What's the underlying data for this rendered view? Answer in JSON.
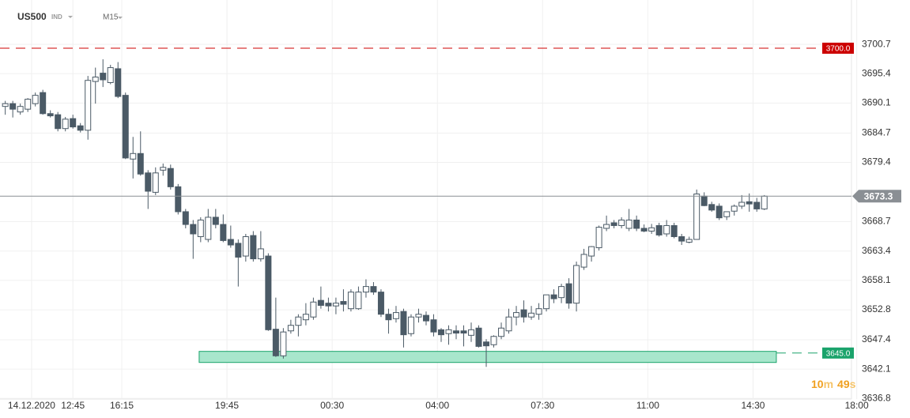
{
  "chart_data": {
    "type": "candlestick",
    "symbol": "US500",
    "instrument_type": "IND",
    "timeframe": "M15",
    "x": [
      0,
      1,
      2,
      3,
      4,
      5,
      6,
      7,
      8,
      9,
      10,
      11,
      12,
      13,
      14,
      15,
      16,
      17,
      18,
      19,
      20,
      21,
      22,
      23,
      24,
      25,
      26,
      27,
      28,
      29,
      30,
      31,
      32,
      33,
      34,
      35,
      36,
      37,
      38,
      39,
      40,
      41,
      42,
      43,
      44,
      45,
      46,
      47,
      48,
      49,
      50,
      51,
      52,
      53,
      54,
      55,
      56,
      57,
      58,
      59,
      60,
      61,
      62,
      63,
      64,
      65,
      66,
      67,
      68,
      69,
      70,
      71,
      72,
      73,
      74,
      75,
      76,
      77,
      78,
      79,
      80,
      81,
      82,
      83,
      84,
      85,
      86,
      87,
      88,
      89,
      90,
      91,
      92,
      93,
      94,
      95,
      96,
      97,
      98,
      99,
      100,
      101
    ],
    "open": [
      3689.5,
      3690,
      3688.5,
      3689,
      3690,
      3692,
      3688.2,
      3688,
      3685.5,
      3687.3,
      3686,
      3685.2,
      3694,
      3695.5,
      3693.8,
      3696.3,
      3691.5,
      3680,
      3681,
      3677.5,
      3674,
      3678,
      3678.3,
      3675,
      3670.5,
      3668.2,
      3666,
      3665.5,
      3669.5,
      3668.2,
      3665.5,
      3664.8,
      3662.5,
      3666.2,
      3662,
      3662.5,
      3649.3,
      3644.5,
      3649,
      3650,
      3651,
      3651.5,
      3654.5,
      3654,
      3653.5,
      3654.3,
      3653,
      3653,
      3656,
      3657,
      3656,
      3652,
      3651.2,
      3652.5,
      3648.5,
      3651.5,
      3651.8,
      3651,
      3649.2,
      3648.5,
      3649,
      3649,
      3648.2,
      3649.5,
      3647,
      3646.5,
      3648,
      3649,
      3651.5,
      3652.8,
      3651.5,
      3652,
      3653,
      3655.5,
      3655,
      3657.5,
      3654,
      3660.5,
      3662.5,
      3664,
      3667.5,
      3668.5,
      3668,
      3667.5,
      3669,
      3667.5,
      3667,
      3668,
      3666.5,
      3668,
      3666,
      3665,
      3665.5,
      3673.3,
      3671.8,
      3671.5,
      3669.6,
      3670.6,
      3671.5,
      3672.3,
      3672.2,
      3671
    ],
    "high": [
      3690.5,
      3690.5,
      3690,
      3691,
      3692,
      3692.5,
      3688.8,
      3688.5,
      3687.6,
      3688,
      3686.5,
      3695,
      3696.5,
      3698,
      3697,
      3697.5,
      3692,
      3684,
      3685,
      3678,
      3678.5,
      3679.2,
      3679,
      3675.5,
      3671,
      3669,
      3669.5,
      3671,
      3671,
      3670,
      3668,
      3665.5,
      3666.5,
      3667,
      3667,
      3663,
      3655,
      3649.5,
      3651,
      3652,
      3654,
      3655,
      3657,
      3655,
      3655,
      3656.5,
      3656.5,
      3657,
      3658.3,
      3657.8,
      3656.5,
      3653,
      3653.5,
      3653,
      3652,
      3653,
      3652.5,
      3652,
      3649.5,
      3650,
      3650,
      3650,
      3650.5,
      3650,
      3647.5,
      3648.2,
      3650.5,
      3653,
      3653.5,
      3654.5,
      3653.5,
      3654,
      3655.5,
      3656.5,
      3657.5,
      3658.5,
      3661.5,
      3663.8,
      3664.3,
      3668,
      3669.8,
      3669,
      3669.5,
      3671,
      3669.8,
      3668.2,
      3668.3,
      3668.5,
      3669,
      3668.5,
      3666.5,
      3666,
      3674.5,
      3674,
      3672.3,
      3672,
      3670.5,
      3671.8,
      3673.5,
      3673.8,
      3673,
      3673.5
    ],
    "low": [
      3688,
      3687.5,
      3688,
      3688.5,
      3689.5,
      3688,
      3687.5,
      3685,
      3685,
      3685.5,
      3684.8,
      3683.5,
      3690,
      3693,
      3693.5,
      3691,
      3680,
      3676.5,
      3677,
      3671,
      3673.5,
      3677,
      3674.5,
      3670,
      3667.5,
      3662,
      3665,
      3665,
      3667.5,
      3665,
      3664,
      3657,
      3661.5,
      3661.5,
      3661.5,
      3649,
      3644.3,
      3644,
      3648.5,
      3648,
      3650,
      3651,
      3653,
      3652.5,
      3652,
      3652.5,
      3652.5,
      3652.8,
      3655,
      3655.5,
      3651.5,
      3648.5,
      3650.5,
      3646,
      3648,
      3650.5,
      3650,
      3648,
      3647,
      3646.5,
      3647.5,
      3646.2,
      3647,
      3646,
      3642.5,
      3646,
      3647.5,
      3648.5,
      3650,
      3650.5,
      3651,
      3651,
      3652.5,
      3654,
      3654,
      3653,
      3652.5,
      3660,
      3661.5,
      3663.5,
      3667,
      3667.5,
      3667.5,
      3667,
      3667,
      3666.8,
      3666.5,
      3666,
      3666,
      3665.7,
      3664.5,
      3664.8,
      3665.5,
      3671.5,
      3670.5,
      3669,
      3669,
      3669.8,
      3671,
      3670.5,
      3670.5,
      3670.8
    ],
    "close": [
      3690,
      3689,
      3689.5,
      3690.8,
      3691.5,
      3688.2,
      3687.8,
      3685.5,
      3687.2,
      3685.8,
      3685.2,
      3694.2,
      3694.8,
      3694.3,
      3696.5,
      3691.3,
      3680.2,
      3681,
      3677.3,
      3674.2,
      3677.5,
      3678.5,
      3675,
      3670.5,
      3668.2,
      3666.5,
      3669,
      3669.5,
      3668.2,
      3665.3,
      3664.5,
      3662.3,
      3666,
      3662,
      3663.8,
      3649.2,
      3644.5,
      3648.8,
      3650,
      3651.5,
      3652,
      3654.2,
      3653.6,
      3653.5,
      3654,
      3653.8,
      3656,
      3656,
      3657,
      3656,
      3652,
      3651,
      3652.3,
      3648.3,
      3651.5,
      3652,
      3650.8,
      3648.8,
      3648.3,
      3649.2,
      3648.6,
      3648.6,
      3649.2,
      3646.2,
      3646.3,
      3648,
      3649.5,
      3651.5,
      3652.3,
      3651.5,
      3652.2,
      3653,
      3655.5,
      3654.8,
      3657,
      3654,
      3660.8,
      3662.8,
      3664.2,
      3667.7,
      3668.2,
      3668,
      3669,
      3669,
      3667.5,
      3667,
      3667.6,
      3666.3,
      3668,
      3666,
      3665.2,
      3665.5,
      3673.7,
      3671.6,
      3670.8,
      3669.4,
      3670.5,
      3671.5,
      3672.2,
      3671.9,
      3671,
      3673.3
    ],
    "up_color": "#ffffff",
    "down_color": "#4b5a66",
    "outline_color": "#4b5a66",
    "xlim": [
      -0.7,
      112.6
    ],
    "xticks": [
      {
        "value": 3.5,
        "label": "14.12.2020"
      },
      {
        "value": 9,
        "label": "12:45"
      },
      {
        "value": 15.5,
        "label": "16:15"
      },
      {
        "value": 29.5,
        "label": "19:45"
      },
      {
        "value": 43.5,
        "label": "00:30"
      },
      {
        "value": 57.5,
        "label": "04:00"
      },
      {
        "value": 71.5,
        "label": "07:30"
      },
      {
        "value": 85.5,
        "label": "11:00"
      },
      {
        "value": 99.5,
        "label": "14:30"
      },
      {
        "value": 113.3,
        "label": "18:00"
      }
    ],
    "ylim": [
      3636.7,
      3708.7
    ],
    "yticks": [
      3636.8,
      3642.1,
      3647.4,
      3652.8,
      3658.1,
      3663.4,
      3668.7,
      3679.4,
      3684.7,
      3690.1,
      3695.4,
      3700.7
    ],
    "grid": true,
    "levels": [
      {
        "value": 3700,
        "label": "3700.0",
        "color": "#cc0000"
      },
      {
        "value": 3645,
        "label": "3645.0",
        "color": "#1aa36b"
      }
    ],
    "zone": {
      "from": 25.8,
      "to": 102.6,
      "low": 3643.3,
      "high": 3645.3,
      "color": "#a8e6cc"
    },
    "last_price": {
      "value": 3673.3,
      "label": "3673.3",
      "color": "#8a8f94"
    },
    "countdown": {
      "minutes": "10",
      "minutes_unit": "m",
      "seconds": "49",
      "seconds_unit": "s"
    }
  }
}
